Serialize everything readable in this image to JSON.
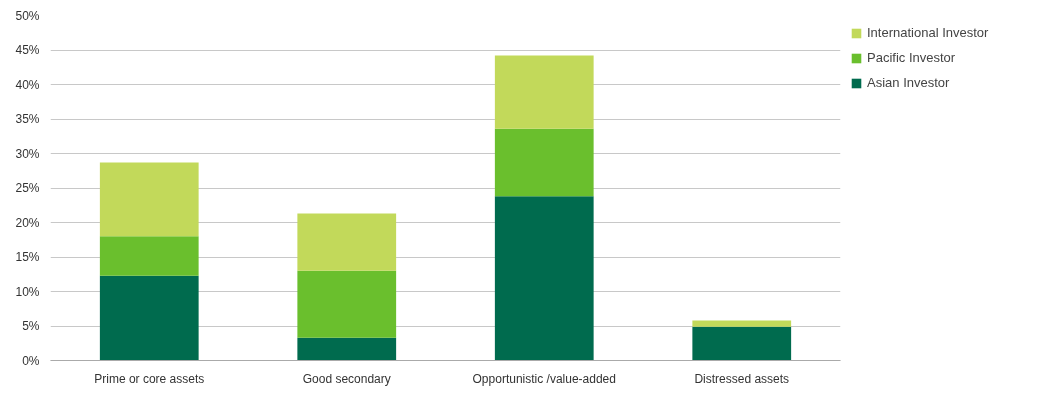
{
  "chart_data": {
    "type": "bar",
    "stacked": true,
    "categories": [
      "Prime or core assets",
      "Good secondary",
      "Opportunistic /value-added",
      "Distressed assets"
    ],
    "series": [
      {
        "name": "Asian Investor",
        "color": "#006b4e",
        "values": [
          12.3,
          3.3,
          23.8,
          4.9
        ]
      },
      {
        "name": "Pacific Investor",
        "color": "#6abf2d",
        "values": [
          5.7,
          9.7,
          9.8,
          0
        ]
      },
      {
        "name": "International Investor",
        "color": "#c2d95a",
        "values": [
          10.7,
          8.3,
          10.6,
          0.9
        ]
      }
    ],
    "ylim": [
      0,
      50
    ],
    "yticks": [
      {
        "value": 0,
        "label": "0%"
      },
      {
        "value": 5,
        "label": "5%"
      },
      {
        "value": 10,
        "label": "10%"
      },
      {
        "value": 15,
        "label": "15%"
      },
      {
        "value": 20,
        "label": "20%"
      },
      {
        "value": 25,
        "label": "25%"
      },
      {
        "value": 30,
        "label": "30%"
      },
      {
        "value": 35,
        "label": "35%"
      },
      {
        "value": 40,
        "label": "40%"
      },
      {
        "value": 45,
        "label": "45%"
      },
      {
        "value": 50,
        "label": "50%"
      }
    ],
    "grid": "y",
    "legend": "right"
  }
}
